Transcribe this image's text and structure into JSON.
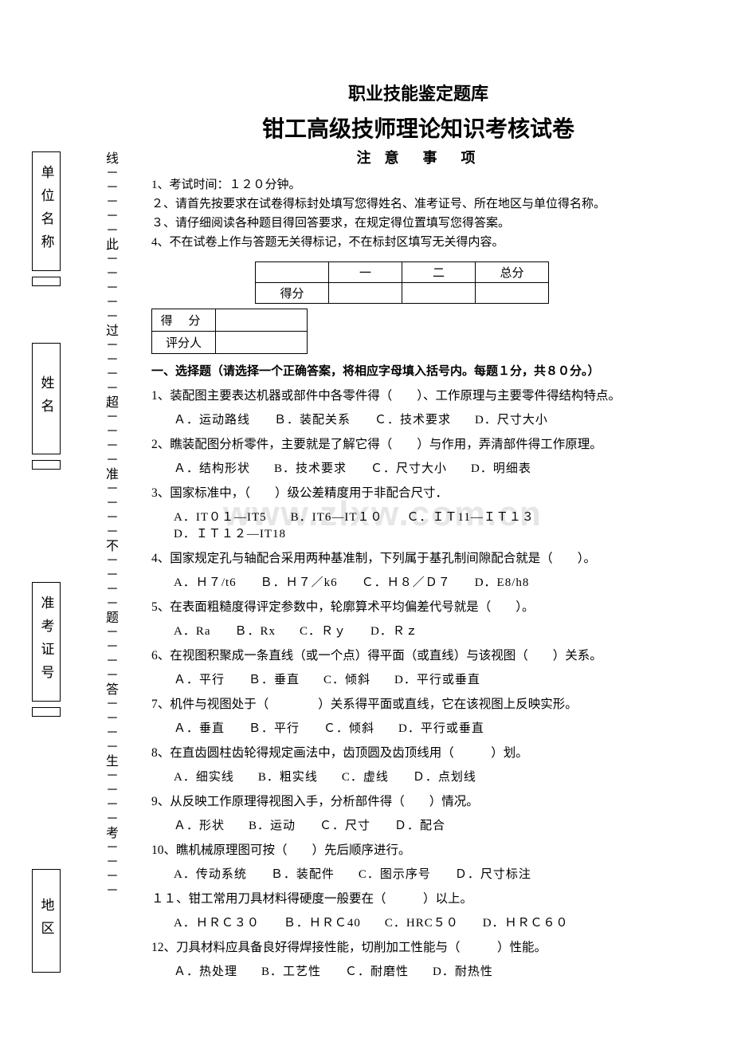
{
  "leftBoxes": {
    "unit": "单位名称",
    "name": "姓名",
    "examId": "准考证号",
    "region": "地区"
  },
  "dashedLine": "线－－－－－此－－－－－过－－－－超－－－－准－－－－不－－－－题－－－－答－－－－生－－－－考－－－－",
  "watermark": "www.zlxw.com.cn",
  "headings": {
    "h1": "职业技能鉴定题库",
    "h2": "钳工高级技师理论知识考核试卷",
    "h3": "注 意　事　项"
  },
  "notes": [
    "1、考试时间：１２０分钟。",
    "２、请首先按要求在试卷得标封处填写您得姓名、准考证号、所在地区与单位得名称。",
    "３、请仔细阅读各种题目得回答要求，在规定得位置填写您得答案。",
    "4、不在试卷上作与答题无关得标记，不在标封区填写无关得内容。"
  ],
  "scoreTable": {
    "hdrScore": "得分",
    "colOne": "一",
    "colTwo": "二",
    "colTotal": "总分"
  },
  "smallTable": {
    "r1": "得 分",
    "r2": "评分人"
  },
  "sectionHead": "一、选择题（请选择一个正确答案，将相应字母填入括号内。每题１分，共８０分。）",
  "questions": [
    {
      "q": "1、装配图主要表达机器或部件中各零件得（　　）、工作原理与主要零件得结构特点。",
      "opts": [
        "Ａ．运动路线",
        "Ｂ．装配关系",
        "Ｃ．技术要求",
        "D．尺寸大小"
      ]
    },
    {
      "q": "2、瞧装配图分析零件，主要就是了解它得（　　）与作用，弄清部件得工作原理。",
      "opts": [
        "Ａ．结构形状",
        "B．技术要求",
        "Ｃ．尺寸大小",
        "D．明细表"
      ]
    },
    {
      "q": "3、国家标准中，（　　）级公差精度用于非配合尺寸．",
      "opts": [
        "A．IT０１—IT5",
        "B．IT6—IT１０",
        "Ｃ．ＩＴ11—ＩＴ１３",
        "D．ＩＴ１２—IT18"
      ]
    },
    {
      "q": "4、国家规定孔与轴配合采用两种基准制，下列属于基孔制间隙配合就是（　　）。",
      "opts": [
        "A．Ｈ７/t6",
        "Ｂ．Ｈ７／k6",
        "Ｃ．Ｈ８／Ｄ７",
        "D．E8/h8"
      ]
    },
    {
      "q": "5、在表面粗糙度得评定参数中，轮廓算术平均偏差代号就是（　　）。",
      "opts": [
        "A．Ra",
        "Ｂ．Rx",
        "C．Ｒｙ",
        "D．Ｒｚ"
      ]
    },
    {
      "q": "6、在视图积聚成一条直线（或一个点）得平面（或直线）与该视图（　　）关系。",
      "opts": [
        "Ａ．平行",
        "Ｂ．垂直",
        "C．倾斜",
        "D．平行或垂直"
      ]
    },
    {
      "q": "7、机件与视图处于（　　　　）关系得平面或直线，它在该视图上反映实形。",
      "opts": [
        "Ａ．垂直",
        "Ｂ．平行",
        "Ｃ．倾斜",
        "D．平行或垂直"
      ]
    },
    {
      "q": "8、在直齿圆柱齿轮得规定画法中，齿顶圆及齿顶线用（　　　）划。",
      "opts": [
        "A．细实线",
        "B．粗实线",
        "C．虚线",
        "Ｄ．点划线"
      ]
    },
    {
      "q": "9、从反映工作原理得视图入手，分析部件得（　　）情况。",
      "opts": [
        "Ａ．形状",
        "B．运动",
        "Ｃ．尺寸",
        "Ｄ．配合"
      ]
    },
    {
      "q": "10、瞧机械原理图可按（　　）先后顺序进行。",
      "opts": [
        "A．传动系统",
        "Ｂ．装配件",
        "C．图示序号",
        "Ｄ．尺寸标注"
      ]
    },
    {
      "q": "１１、钳工常用刀具材料得硬度一般要在（　　　）以上。",
      "opts": [
        "A．ＨＲＣ３０",
        "Ｂ．ＨＲＣ40",
        "C．HRC５０",
        "D．ＨＲＣ６０"
      ]
    },
    {
      "q": "12、刀具材料应具备良好得焊接性能，切削加工性能与（　　　）性能。",
      "opts": [
        "Ａ．热处理",
        "B．工艺性",
        "Ｃ．耐磨性",
        "D．耐热性"
      ]
    }
  ]
}
